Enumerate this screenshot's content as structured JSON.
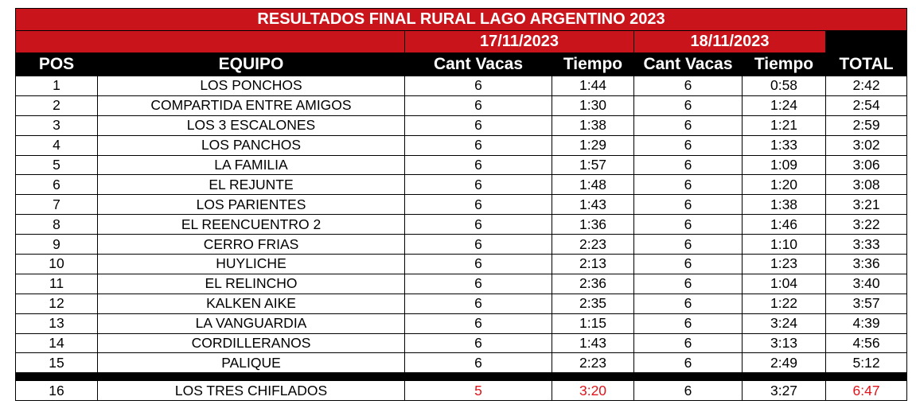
{
  "title": "RESULTADOS FINAL RURAL LAGO ARGENTINO 2023",
  "dates": [
    "17/11/2023",
    "18/11/2023"
  ],
  "headers": {
    "pos": "POS",
    "equipo": "EQUIPO",
    "cant_vacas_1": "Cant Vacas",
    "tiempo_1": "Tiempo",
    "cant_vacas_2": "Cant Vacas",
    "tiempo_2": "Tiempo",
    "total": "TOTAL"
  },
  "rows": [
    {
      "pos": "1",
      "equipo": "LOS PONCHOS",
      "vacas1": "6",
      "tiempo1": "1:44",
      "vacas2": "6",
      "tiempo2": "0:58",
      "total": "2:42"
    },
    {
      "pos": "2",
      "equipo": "COMPARTIDA ENTRE AMIGOS",
      "vacas1": "6",
      "tiempo1": "1:30",
      "vacas2": "6",
      "tiempo2": "1:24",
      "total": "2:54"
    },
    {
      "pos": "3",
      "equipo": "LOS 3 ESCALONES",
      "vacas1": "6",
      "tiempo1": "1:38",
      "vacas2": "6",
      "tiempo2": "1:21",
      "total": "2:59"
    },
    {
      "pos": "4",
      "equipo": "LOS PANCHOS",
      "vacas1": "6",
      "tiempo1": "1:29",
      "vacas2": "6",
      "tiempo2": "1:33",
      "total": "3:02"
    },
    {
      "pos": "5",
      "equipo": "LA FAMILIA",
      "vacas1": "6",
      "tiempo1": "1:57",
      "vacas2": "6",
      "tiempo2": "1:09",
      "total": "3:06"
    },
    {
      "pos": "6",
      "equipo": "EL REJUNTE",
      "vacas1": "6",
      "tiempo1": "1:48",
      "vacas2": "6",
      "tiempo2": "1:20",
      "total": "3:08"
    },
    {
      "pos": "7",
      "equipo": "LOS PARIENTES",
      "vacas1": "6",
      "tiempo1": "1:43",
      "vacas2": "6",
      "tiempo2": "1:38",
      "total": "3:21"
    },
    {
      "pos": "8",
      "equipo": "EL REENCUENTRO 2",
      "vacas1": "6",
      "tiempo1": "1:36",
      "vacas2": "6",
      "tiempo2": "1:46",
      "total": "3:22"
    },
    {
      "pos": "9",
      "equipo": "CERRO FRIAS",
      "vacas1": "6",
      "tiempo1": "2:23",
      "vacas2": "6",
      "tiempo2": "1:10",
      "total": "3:33"
    },
    {
      "pos": "10",
      "equipo": "HUYLICHE",
      "vacas1": "6",
      "tiempo1": "2:13",
      "vacas2": "6",
      "tiempo2": "1:23",
      "total": "3:36"
    },
    {
      "pos": "11",
      "equipo": "EL RELINCHO",
      "vacas1": "6",
      "tiempo1": "2:36",
      "vacas2": "6",
      "tiempo2": "1:04",
      "total": "3:40"
    },
    {
      "pos": "12",
      "equipo": "KALKEN AIKE",
      "vacas1": "6",
      "tiempo1": "2:35",
      "vacas2": "6",
      "tiempo2": "1:22",
      "total": "3:57"
    },
    {
      "pos": "13",
      "equipo": "LA VANGUARDIA",
      "vacas1": "6",
      "tiempo1": "1:15",
      "vacas2": "6",
      "tiempo2": "3:24",
      "total": "4:39"
    },
    {
      "pos": "14",
      "equipo": "CORDILLERANOS",
      "vacas1": "6",
      "tiempo1": "1:43",
      "vacas2": "6",
      "tiempo2": "3:13",
      "total": "4:56"
    },
    {
      "pos": "15",
      "equipo": "PALIQUE",
      "vacas1": "6",
      "tiempo1": "2:23",
      "vacas2": "6",
      "tiempo2": "2:49",
      "total": "5:12"
    }
  ],
  "last_row": {
    "pos": "16",
    "equipo": "LOS TRES CHIFLADOS",
    "vacas1": "5",
    "tiempo1": "3:20",
    "vacas2": "6",
    "tiempo2": "3:27",
    "total": "6:47"
  },
  "colors": {
    "header_red": "#c8141a",
    "header_black": "#000000",
    "penalty_red": "#e0141a"
  }
}
